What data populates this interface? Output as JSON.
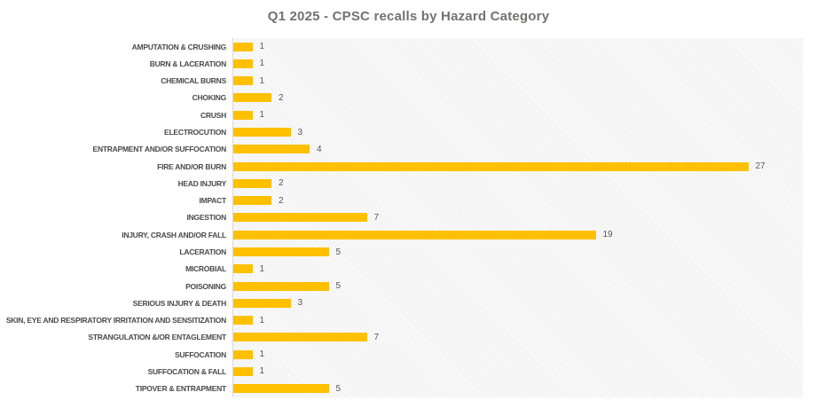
{
  "chart_data": {
    "type": "bar",
    "orientation": "horizontal",
    "title": "Q1 2025 - CPSC recalls by Hazard Category",
    "categories": [
      "AMPUTATION & CRUSHING",
      "BURN & LACERATION",
      "CHEMICAL BURNS",
      "CHOKING",
      "CRUSH",
      "ELECTROCUTION",
      "ENTRAPMENT AND/OR SUFFOCATION",
      "FIRE AND/OR BURN",
      "HEAD INJURY",
      "IMPACT",
      "INGESTION",
      "INJURY, CRASH AND/OR FALL",
      "LACERATION",
      "MICROBIAL",
      "POISONING",
      "SERIOUS INJURY & DEATH",
      "SKIN, EYE AND RESPIRATORY IRRITATION AND SENSITIZATION",
      "STRANGULATION &/OR ENTAGLEMENT",
      "SUFFOCATION",
      "SUFFOCATION & FALL",
      "TIPOVER & ENTRAPMENT"
    ],
    "values": [
      1,
      1,
      1,
      2,
      1,
      3,
      4,
      27,
      2,
      2,
      7,
      19,
      5,
      1,
      5,
      3,
      1,
      7,
      1,
      1,
      5
    ],
    "xlabel": "",
    "ylabel": "",
    "xlim": [
      0,
      30
    ],
    "grid": false,
    "legend": "none",
    "data_labels_shown": true,
    "colors": {
      "bar": "#FFC000",
      "title": "#767171",
      "category_label": "#4a4a4a",
      "value_label": "#595959",
      "axis_line": "#d9d9d9",
      "plot_hatch": "#ececec"
    }
  }
}
